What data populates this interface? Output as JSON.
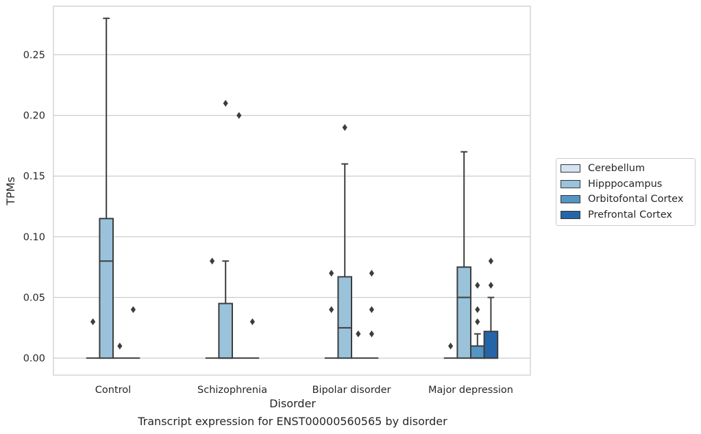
{
  "caption": "Transcript expression for ENST00000560565 by disorder",
  "chart_data": {
    "type": "box",
    "xlabel": "Disorder",
    "ylabel": "TPMs",
    "ylim": [
      -0.014,
      0.29
    ],
    "yticks": [
      0.0,
      0.05,
      0.1,
      0.15,
      0.2,
      0.25
    ],
    "ytick_labels": [
      "0.00",
      "0.05",
      "0.10",
      "0.15",
      "0.20",
      "0.25"
    ],
    "grid": "horizontal",
    "legend_position": "right",
    "categories": [
      "Control",
      "Schizophrenia",
      "Bipolar disorder",
      "Major depression"
    ],
    "series": [
      {
        "name": "Cerebellum",
        "color": "#d3e3f1",
        "boxes": [
          {
            "q1": 0,
            "median": 0,
            "q3": 0,
            "whisker_low": 0,
            "whisker_high": 0,
            "outliers": [
              0.03
            ]
          },
          {
            "q1": 0,
            "median": 0,
            "q3": 0,
            "whisker_low": 0,
            "whisker_high": 0,
            "outliers": [
              0.08
            ]
          },
          {
            "q1": 0,
            "median": 0,
            "q3": 0,
            "whisker_low": 0,
            "whisker_high": 0,
            "outliers": [
              0.07,
              0.04
            ]
          },
          {
            "q1": 0,
            "median": 0,
            "q3": 0,
            "whisker_low": 0,
            "whisker_high": 0,
            "outliers": [
              0.01
            ]
          }
        ]
      },
      {
        "name": "Hipppocampus",
        "color": "#9ac2db",
        "boxes": [
          {
            "q1": 0,
            "median": 0.08,
            "q3": 0.115,
            "whisker_low": 0,
            "whisker_high": 0.28,
            "outliers": []
          },
          {
            "q1": 0,
            "median": 0,
            "q3": 0.045,
            "whisker_low": 0,
            "whisker_high": 0.08,
            "outliers": [
              0.21
            ]
          },
          {
            "q1": 0,
            "median": 0.025,
            "q3": 0.067,
            "whisker_low": 0,
            "whisker_high": 0.16,
            "outliers": [
              0.19
            ]
          },
          {
            "q1": 0,
            "median": 0.05,
            "q3": 0.075,
            "whisker_low": 0,
            "whisker_high": 0.17,
            "outliers": []
          }
        ]
      },
      {
        "name": "Orbitofontal Cortex",
        "color": "#5495c4",
        "boxes": [
          {
            "q1": 0,
            "median": 0,
            "q3": 0,
            "whisker_low": 0,
            "whisker_high": 0,
            "outliers": [
              0.01
            ]
          },
          {
            "q1": 0,
            "median": 0,
            "q3": 0,
            "whisker_low": 0,
            "whisker_high": 0,
            "outliers": [
              0.2
            ]
          },
          {
            "q1": 0,
            "median": 0,
            "q3": 0,
            "whisker_low": 0,
            "whisker_high": 0,
            "outliers": [
              0.02
            ]
          },
          {
            "q1": 0,
            "median": 0,
            "q3": 0.01,
            "whisker_low": 0,
            "whisker_high": 0.02,
            "outliers": [
              0.06,
              0.04,
              0.03
            ]
          }
        ]
      },
      {
        "name": "Prefrontal Cortex",
        "color": "#2465a8",
        "boxes": [
          {
            "q1": 0,
            "median": 0,
            "q3": 0,
            "whisker_low": 0,
            "whisker_high": 0,
            "outliers": [
              0.04
            ]
          },
          {
            "q1": 0,
            "median": 0,
            "q3": 0,
            "whisker_low": 0,
            "whisker_high": 0,
            "outliers": [
              0.03
            ]
          },
          {
            "q1": 0,
            "median": 0,
            "q3": 0,
            "whisker_low": 0,
            "whisker_high": 0,
            "outliers": [
              0.07,
              0.04,
              0.02
            ]
          },
          {
            "q1": 0,
            "median": 0,
            "q3": 0.022,
            "whisker_low": 0,
            "whisker_high": 0.05,
            "outliers": [
              0.08,
              0.06
            ]
          }
        ]
      }
    ]
  }
}
